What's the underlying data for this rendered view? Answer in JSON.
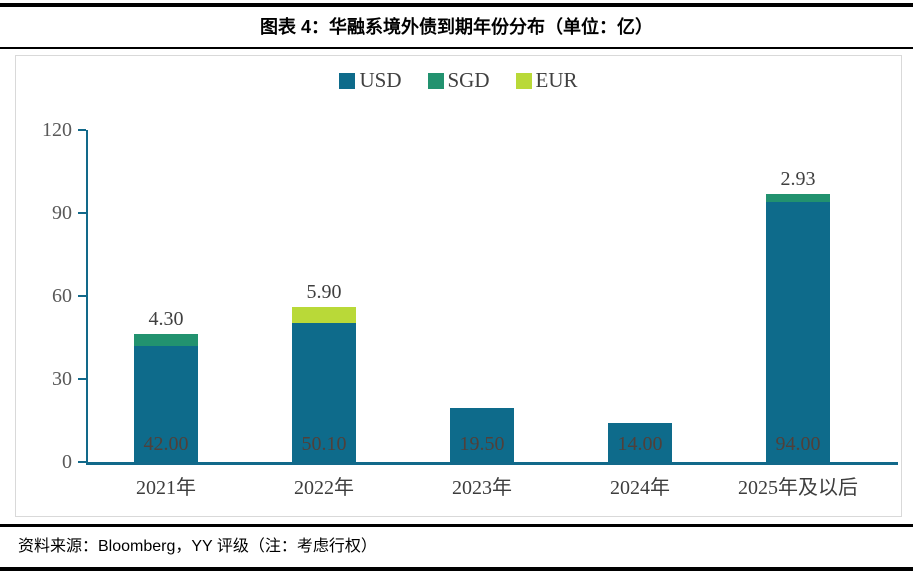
{
  "header": {
    "title": "图表 4：华融系境外债到期年份分布（单位：亿）"
  },
  "footer": {
    "source": "资料来源：Bloomberg，YY 评级（注：考虑行权）"
  },
  "colors": {
    "axis": "#12698a",
    "chart_border": "#d9d9d9",
    "rule": "#000000",
    "y_tick_label": "#595959",
    "x_tick_label": "#3d3d3d",
    "top_label": "#3f3f3f",
    "inside_label": "#50403a"
  },
  "chart_data": {
    "type": "bar",
    "stacked": true,
    "title": "图表 4：华融系境外债到期年份分布（单位：亿）",
    "xlabel": "",
    "ylabel": "",
    "categories": [
      "2021年",
      "2022年",
      "2023年",
      "2024年",
      "2025年及以后"
    ],
    "series": [
      {
        "name": "USD",
        "color": "#0e6b8b",
        "values": [
          42.0,
          50.1,
          19.5,
          14.0,
          94.0
        ]
      },
      {
        "name": "SGD",
        "color": "#22926f",
        "values": [
          4.3,
          0,
          0,
          0,
          2.93
        ]
      },
      {
        "name": "EUR",
        "color": "#b9d938",
        "values": [
          0,
          5.9,
          0,
          0,
          0
        ]
      }
    ],
    "inside_labels": [
      "42.00",
      "50.10",
      "19.50",
      "14.00",
      "94.00"
    ],
    "top_labels": [
      "4.30",
      "5.90",
      "",
      "",
      "2.93"
    ],
    "yticks": [
      0,
      30,
      60,
      90,
      120
    ],
    "ylim": [
      0,
      120
    ],
    "legend_position": "top",
    "grid": false
  }
}
